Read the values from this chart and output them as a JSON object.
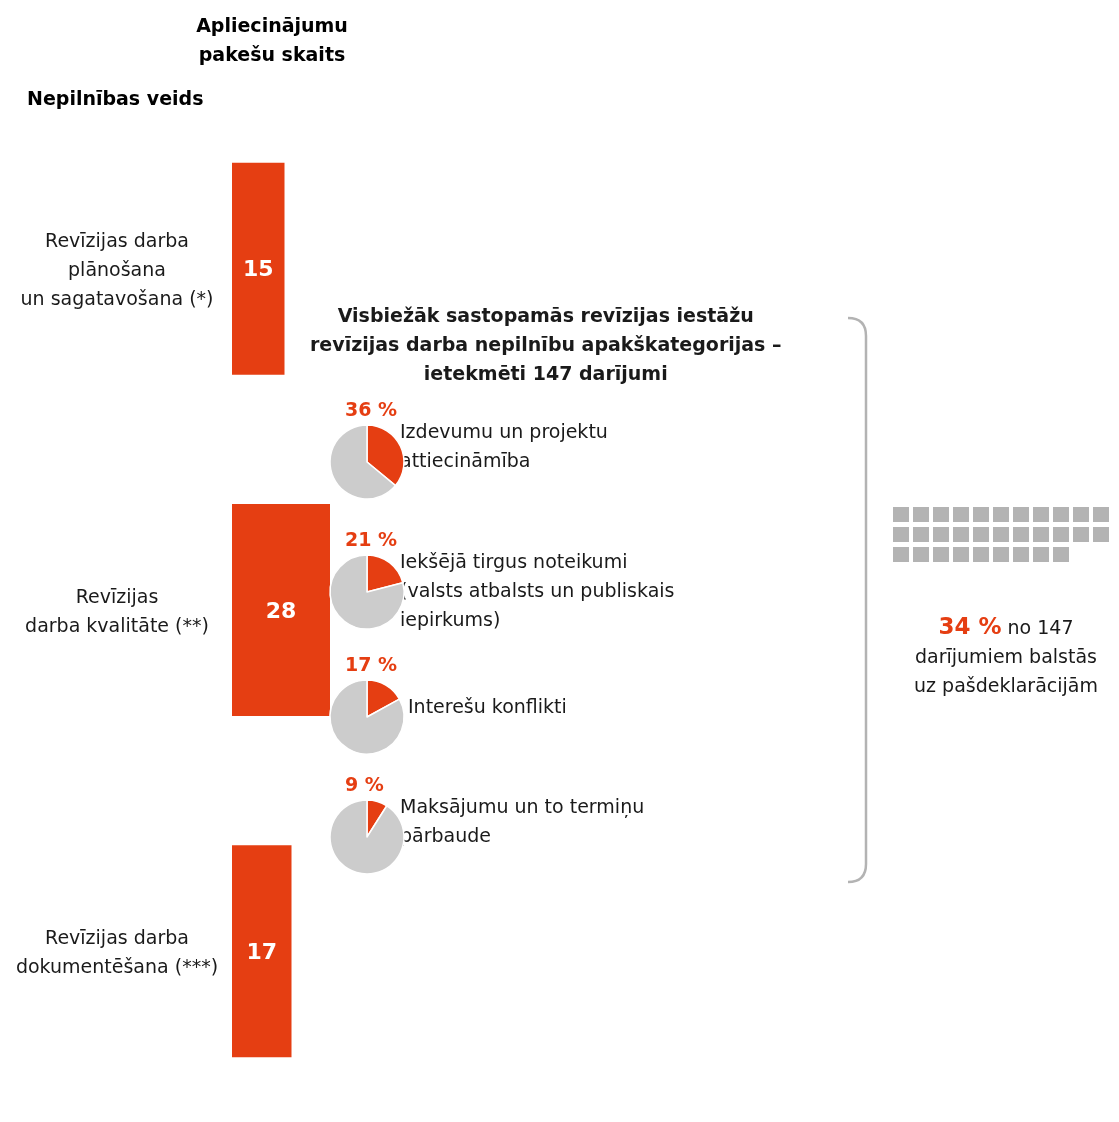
{
  "chart_data": [
    {
      "type": "bar",
      "orientation": "horizontal",
      "xlabel": "Apliecinājumu\npakešu skaits",
      "ylabel": "Nepilnības veids",
      "categories": [
        "Revīzijas darba\nplānošana\nun sagatavošana (*)",
        "Revīzijas\ndarba kvalitāte (**)",
        "Revīzijas darba\ndokumentēšana (***)"
      ],
      "values": [
        15,
        28,
        17
      ],
      "color": "#e53e12",
      "data_labels": true
    },
    {
      "type": "pie",
      "title": "Visbiežāk sastopamās revīzijas iestāžu\nrevīzijas darba nepilnību apakškategorijas –\nietekmēti 147 darījumi",
      "categories": [
        "Izdevumu un projektu\nattiecināmība",
        null
      ],
      "values": [
        36,
        64
      ],
      "colors": [
        "#e53e12",
        "#cccccc"
      ],
      "value_labels": [
        "36 %",
        null
      ]
    },
    {
      "type": "pie",
      "categories": [
        "Iekšējā tirgus noteikumi\n(valsts atbalsts un publiskais\niepirkums)",
        null
      ],
      "values": [
        21,
        79
      ],
      "colors": [
        "#e53e12",
        "#cccccc"
      ],
      "value_labels": [
        "21 %",
        null
      ]
    },
    {
      "type": "pie",
      "categories": [
        "Interešu konflikti",
        null
      ],
      "values": [
        17,
        83
      ],
      "colors": [
        "#e53e12",
        "#cccccc"
      ],
      "value_labels": [
        "17 %",
        null
      ]
    },
    {
      "type": "pie",
      "categories": [
        "Maksājumu un to termiņu\npārbaude",
        null
      ],
      "values": [
        9,
        91
      ],
      "colors": [
        "#e53e12",
        "#cccccc"
      ],
      "value_labels": [
        "9 %",
        null
      ]
    },
    {
      "type": "other",
      "annotations": [
        "34 %",
        "no 147",
        "darījumiem balstās\nuz pašdeklarācijām"
      ]
    }
  ]
}
